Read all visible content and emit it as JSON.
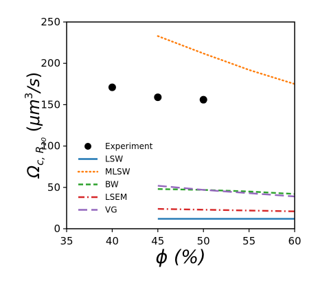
{
  "chart_data": {
    "type": "line",
    "xlabel": "ϕ (%)",
    "ylabel": "Ω_{c, R_{10}} (μm^3/s)",
    "xlim": [
      35,
      60
    ],
    "ylim": [
      0,
      250
    ],
    "x_ticks": [
      35,
      40,
      45,
      50,
      55,
      60
    ],
    "y_ticks": [
      0,
      50,
      100,
      150,
      200,
      250
    ],
    "legend_position": "lower-left",
    "series": [
      {
        "name": "Experiment",
        "style": "scatter",
        "color": "#000000",
        "points": [
          {
            "x": 40,
            "y": 171
          },
          {
            "x": 45,
            "y": 159
          },
          {
            "x": 50,
            "y": 156
          }
        ]
      },
      {
        "name": "LSW",
        "style": "solid",
        "color": "#1f77b4",
        "points": [
          {
            "x": 45,
            "y": 12
          },
          {
            "x": 50,
            "y": 12
          },
          {
            "x": 55,
            "y": 12
          },
          {
            "x": 60,
            "y": 12
          }
        ]
      },
      {
        "name": "MLSW",
        "style": "dotted",
        "color": "#ff7f0e",
        "points": [
          {
            "x": 45,
            "y": 233
          },
          {
            "x": 50,
            "y": 212
          },
          {
            "x": 55,
            "y": 192
          },
          {
            "x": 60,
            "y": 175
          }
        ]
      },
      {
        "name": "BW",
        "style": "dashed",
        "color": "#2ca02c",
        "points": [
          {
            "x": 45,
            "y": 48
          },
          {
            "x": 50,
            "y": 47
          },
          {
            "x": 55,
            "y": 45
          },
          {
            "x": 60,
            "y": 42
          }
        ]
      },
      {
        "name": "LSEM",
        "style": "dashdot",
        "color": "#d62728",
        "points": [
          {
            "x": 45,
            "y": 24
          },
          {
            "x": 50,
            "y": 23
          },
          {
            "x": 55,
            "y": 22
          },
          {
            "x": 60,
            "y": 21
          }
        ]
      },
      {
        "name": "VG",
        "style": "longdash",
        "color": "#9467bd",
        "points": [
          {
            "x": 45,
            "y": 52
          },
          {
            "x": 50,
            "y": 47
          },
          {
            "x": 55,
            "y": 43
          },
          {
            "x": 60,
            "y": 39
          }
        ]
      }
    ]
  }
}
